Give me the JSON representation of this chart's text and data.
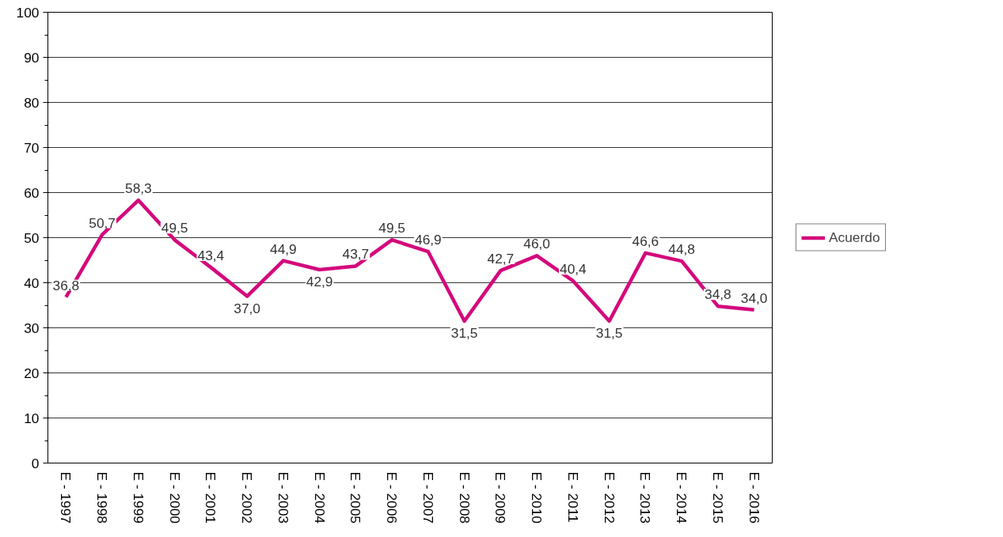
{
  "chart_data": {
    "type": "line",
    "categories": [
      "E - 1997",
      "E - 1998",
      "E - 1999",
      "E - 2000",
      "E - 2001",
      "E - 2002",
      "E - 2003",
      "E - 2004",
      "E - 2005",
      "E - 2006",
      "E - 2007",
      "E - 2008",
      "E - 2009",
      "E - 2010",
      "E - 2011",
      "E - 2012",
      "E - 2013",
      "E - 2014",
      "E - 2015",
      "E - 2016"
    ],
    "series": [
      {
        "name": "Acuerdo",
        "color": "#d4087c",
        "values": [
          36.8,
          50.7,
          58.3,
          49.5,
          43.4,
          37.0,
          44.9,
          42.9,
          43.7,
          49.5,
          46.9,
          31.5,
          42.7,
          46.0,
          40.4,
          31.5,
          46.6,
          44.8,
          34.8,
          34.0
        ],
        "value_labels": [
          "36,8",
          "50,7",
          "58,3",
          "49,5",
          "43,4",
          "37,0",
          "44,9",
          "42,9",
          "43,7",
          "49,5",
          "46,9",
          "31,5",
          "42,7",
          "46,0",
          "40,4",
          "31,5",
          "46,6",
          "44,8",
          "34,8",
          "34,0"
        ]
      }
    ],
    "ylim": [
      0,
      100
    ],
    "yticks": [
      0,
      10,
      20,
      30,
      40,
      50,
      60,
      70,
      80,
      90,
      100
    ],
    "grid": "y",
    "legend": "right",
    "marker": "none",
    "line_style": "solid"
  }
}
